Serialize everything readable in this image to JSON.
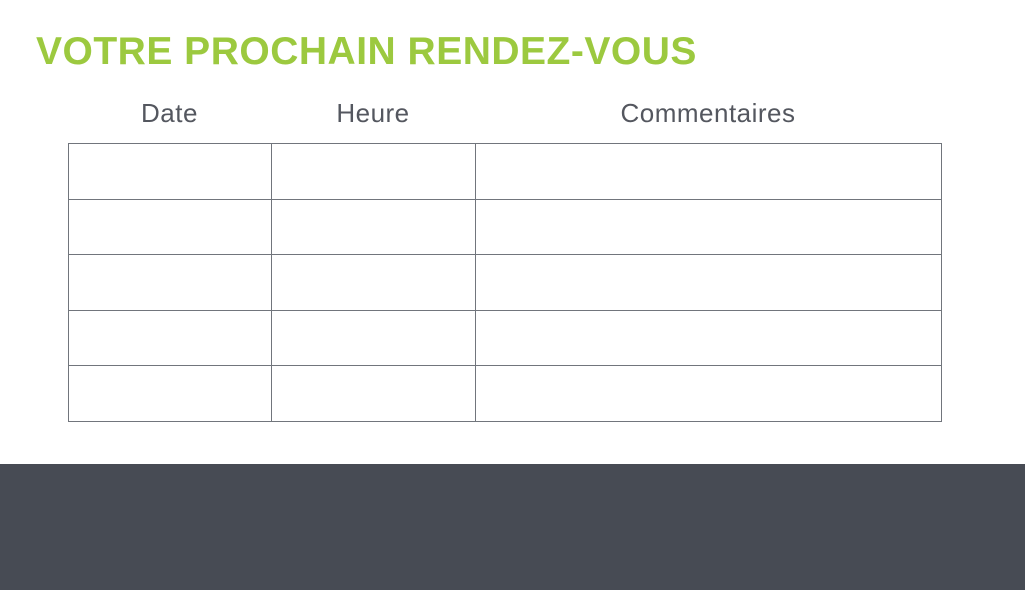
{
  "page": {
    "title": "VOTRE PROCHAIN RENDEZ-VOUS"
  },
  "colors": {
    "title_green": "#9CC93F",
    "header_text": "#54575F",
    "table_border": "#71757C",
    "footer_band": "#474B54",
    "page_background": "#ffffff"
  },
  "table": {
    "columns": [
      {
        "label": "Date"
      },
      {
        "label": "Heure"
      },
      {
        "label": "Commentaires"
      }
    ],
    "rows": [
      [
        "",
        "",
        ""
      ],
      [
        "",
        "",
        ""
      ],
      [
        "",
        "",
        ""
      ],
      [
        "",
        "",
        ""
      ],
      [
        "",
        "",
        ""
      ]
    ]
  }
}
